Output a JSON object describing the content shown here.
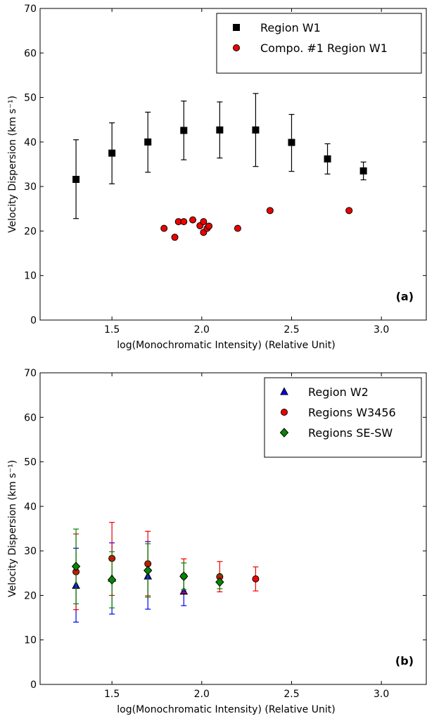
{
  "chart_data": [
    {
      "type": "scatter",
      "panel_label": "(a)",
      "xlabel": "log(Monochromatic Intensity) (Relative Unit)",
      "ylabel": "Velocity Dispersion (km s⁻¹)",
      "xlim": [
        1.1,
        3.25
      ],
      "ylim": [
        0,
        70
      ],
      "xticks": [
        1.5,
        2.0,
        2.5,
        3.0
      ],
      "xtick_labels": [
        "1.5",
        "2.0",
        "2.5",
        "3.0"
      ],
      "yticks": [
        0,
        10,
        20,
        30,
        40,
        50,
        60,
        70
      ],
      "ytick_labels": [
        "0",
        "10",
        "20",
        "30",
        "40",
        "50",
        "60",
        "70"
      ],
      "grid": false,
      "legend_position": "top-right",
      "series": [
        {
          "name": "Region W1",
          "marker": "square",
          "color": "#000000",
          "x": [
            1.3,
            1.5,
            1.7,
            1.9,
            2.1,
            2.3,
            2.5,
            2.7,
            2.9
          ],
          "y": [
            31.6,
            37.5,
            40.0,
            42.6,
            42.7,
            42.7,
            39.9,
            36.2,
            33.5
          ],
          "err_low": [
            8.8,
            6.9,
            6.8,
            6.6,
            6.3,
            8.2,
            6.5,
            3.4,
            2.0
          ],
          "err_high": [
            8.9,
            6.8,
            6.7,
            6.6,
            6.3,
            8.2,
            6.3,
            3.4,
            2.0
          ]
        },
        {
          "name": "Compo. #1 Region W1",
          "marker": "circle",
          "color": "#ee0000",
          "x": [
            1.79,
            1.85,
            1.87,
            1.9,
            1.95,
            1.99,
            2.01,
            2.01,
            2.03,
            2.04,
            2.2,
            2.38,
            2.82
          ],
          "y": [
            20.6,
            18.6,
            22.1,
            22.1,
            22.5,
            21.2,
            22.1,
            19.7,
            20.6,
            21.1,
            20.6,
            24.6,
            24.6
          ]
        }
      ]
    },
    {
      "type": "scatter",
      "panel_label": "(b)",
      "xlabel": "log(Monochromatic Intensity) (Relative Unit)",
      "ylabel": "Velocity Dispersion (km s⁻¹)",
      "xlim": [
        1.1,
        3.25
      ],
      "ylim": [
        0,
        70
      ],
      "xticks": [
        1.5,
        2.0,
        2.5,
        3.0
      ],
      "xtick_labels": [
        "1.5",
        "2.0",
        "2.5",
        "3.0"
      ],
      "yticks": [
        0,
        10,
        20,
        30,
        40,
        50,
        60,
        70
      ],
      "ytick_labels": [
        "0",
        "10",
        "20",
        "30",
        "40",
        "50",
        "60",
        "70"
      ],
      "grid": false,
      "legend_position": "top-right",
      "series": [
        {
          "name": "Region W2",
          "marker": "triangle",
          "color": "#0000ee",
          "x": [
            1.3,
            1.5,
            1.7,
            1.9
          ],
          "y": [
            22.2,
            23.8,
            24.3,
            20.9
          ],
          "err_low": [
            8.2,
            8.0,
            7.4,
            3.2
          ],
          "err_high": [
            8.4,
            8.0,
            7.8,
            3.2
          ]
        },
        {
          "name": "Regions W3456",
          "marker": "circle",
          "color": "#ee0000",
          "x": [
            1.3,
            1.5,
            1.7,
            1.9,
            2.1,
            2.3
          ],
          "y": [
            25.3,
            28.3,
            27.1,
            24.3,
            24.2,
            23.7
          ],
          "err_low": [
            8.5,
            8.3,
            7.2,
            3.7,
            3.4,
            2.7
          ],
          "err_high": [
            8.5,
            8.1,
            7.3,
            3.9,
            3.4,
            2.7
          ]
        },
        {
          "name": "Regions SE-SW",
          "marker": "diamond",
          "color": "#008800",
          "x": [
            1.3,
            1.5,
            1.7,
            1.9,
            2.1
          ],
          "y": [
            26.5,
            23.5,
            25.6,
            24.3,
            23.0
          ],
          "err_low": [
            8.4,
            6.3,
            6.0,
            3.0,
            1.5
          ],
          "err_high": [
            8.4,
            6.3,
            6.0,
            3.0,
            1.5
          ]
        }
      ]
    }
  ]
}
